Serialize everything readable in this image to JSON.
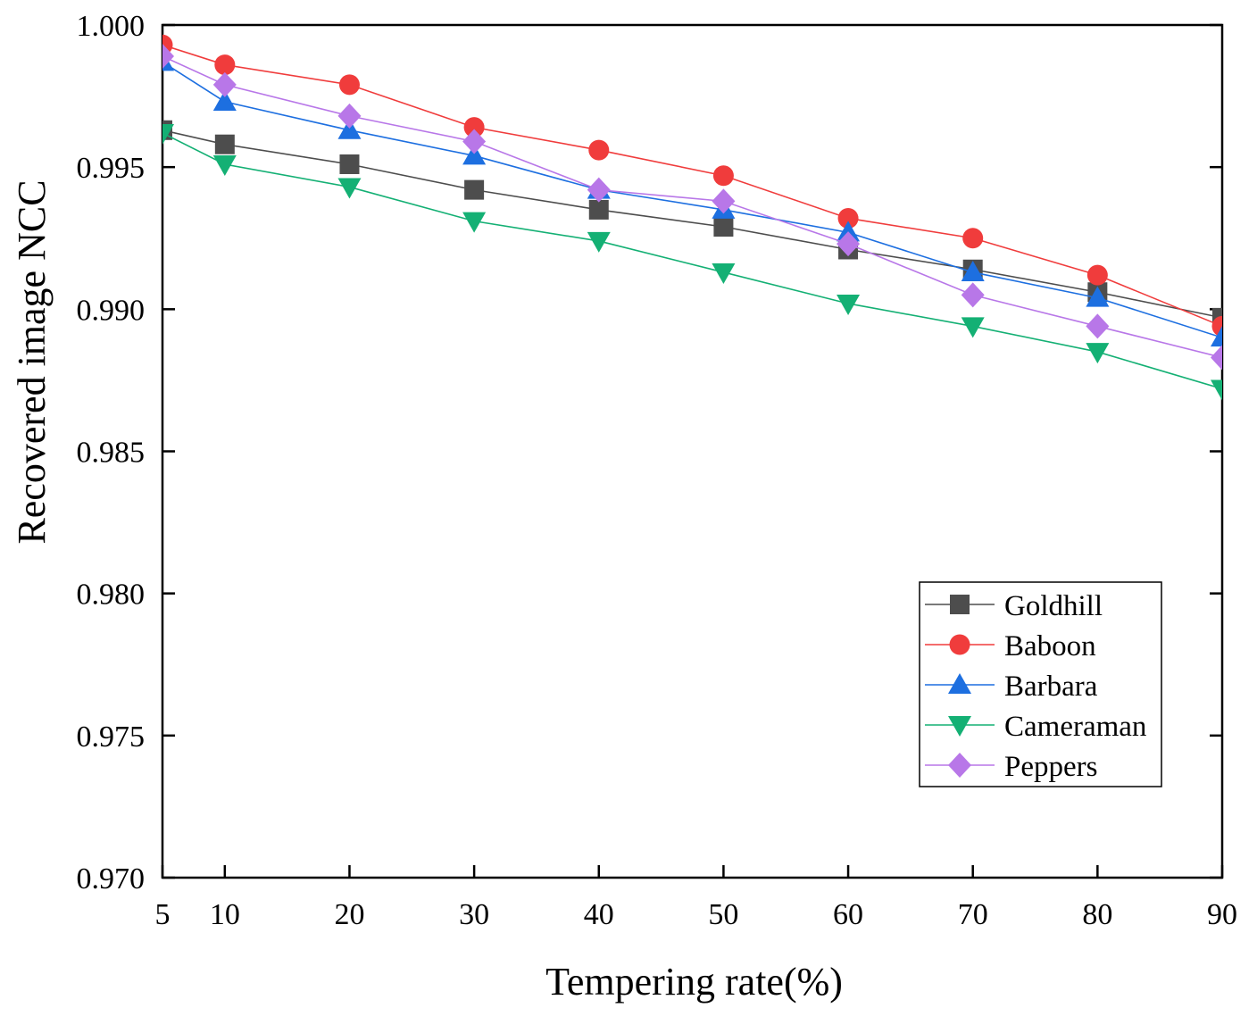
{
  "chart_data": {
    "type": "line",
    "title": "",
    "xlabel": "Tempering rate(%)",
    "ylabel": "Recovered image NCC",
    "x": [
      5,
      10,
      20,
      30,
      40,
      50,
      60,
      70,
      80,
      90
    ],
    "xticks": [
      "5",
      "10",
      "20",
      "30",
      "40",
      "50",
      "60",
      "70",
      "80",
      "90"
    ],
    "xlim": [
      5,
      90
    ],
    "yticks": [
      "0.970",
      "0.975",
      "0.980",
      "0.985",
      "0.990",
      "0.995",
      "1.000"
    ],
    "ylim": [
      0.97,
      1.0
    ],
    "grid": false,
    "legend_position": "lower-right",
    "series": [
      {
        "name": "Goldhill",
        "color": "#4d4d4d",
        "marker": "square",
        "values": [
          0.9963,
          0.9958,
          0.9951,
          0.9942,
          0.9935,
          0.9929,
          0.9921,
          0.9914,
          0.9906,
          0.9897
        ]
      },
      {
        "name": "Baboon",
        "color": "#f03c3c",
        "marker": "circle",
        "values": [
          0.9993,
          0.9986,
          0.9979,
          0.9964,
          0.9956,
          0.9947,
          0.9932,
          0.9925,
          0.9912,
          0.9894
        ]
      },
      {
        "name": "Barbara",
        "color": "#1d6fe0",
        "marker": "triangle-up",
        "values": [
          0.9987,
          0.9973,
          0.9963,
          0.9954,
          0.9942,
          0.9935,
          0.9927,
          0.9913,
          0.9904,
          0.989
        ]
      },
      {
        "name": "Cameraman",
        "color": "#14b074",
        "marker": "triangle-down",
        "values": [
          0.9962,
          0.9951,
          0.9943,
          0.9931,
          0.9924,
          0.9913,
          0.9902,
          0.9894,
          0.9885,
          0.9872
        ]
      },
      {
        "name": "Peppers",
        "color": "#b877e8",
        "marker": "diamond",
        "values": [
          0.9989,
          0.9979,
          0.9968,
          0.9959,
          0.9942,
          0.9938,
          0.9923,
          0.9905,
          0.9894,
          0.9883
        ]
      }
    ]
  }
}
